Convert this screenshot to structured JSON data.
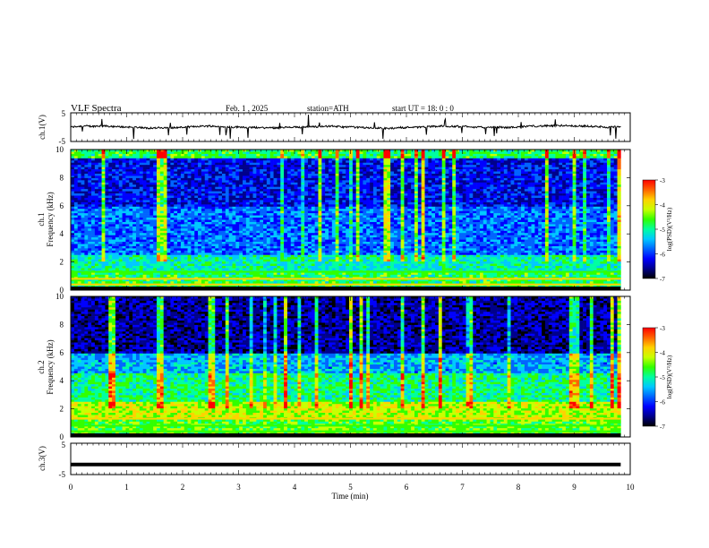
{
  "header": {
    "title": "VLF  Spectra",
    "date": "Feb. 1  , 2025",
    "station": "station=ATH",
    "start_ut": "start  UT  =    18: 0   : 0"
  },
  "colors": {
    "background": "#ffffff",
    "axes": "#000000",
    "trace": "#000000",
    "colormap": [
      "#000000",
      "#00008b",
      "#0000ff",
      "#0064ff",
      "#00c8ff",
      "#00ffa0",
      "#32ff00",
      "#c8ff00",
      "#ffd200",
      "#ff6400",
      "#ff0000",
      "#ffffff"
    ]
  },
  "chart_data": [
    {
      "id": "ch1-waveform",
      "type": "line",
      "ylabel": "ch.1(V)",
      "ylim": [
        -5,
        5
      ],
      "yticks": [
        "5",
        "-5"
      ],
      "xlim": [
        0,
        10
      ],
      "note_series": "approximate baseline near 0 V with small fluctuations and occasional spikes",
      "baseline": 0.0
    },
    {
      "id": "ch1-spectrogram",
      "type": "heatmap",
      "ylabel": "ch.1\nFrequency  (kHz)",
      "ylabel_line1": "ch.1",
      "ylabel_line2": "Frequency  (kHz)",
      "ylim": [
        0,
        10
      ],
      "yticks": [
        "0",
        "2",
        "4",
        "6",
        "8",
        "10"
      ],
      "xlim": [
        0,
        10
      ],
      "colorbar": {
        "label": "log(PSD)(V²/Hz)",
        "range": [
          -7,
          -3
        ],
        "ticks": [
          "-3",
          "-4",
          "-5",
          "-6",
          "-7"
        ]
      }
    },
    {
      "id": "ch2-spectrogram",
      "type": "heatmap",
      "ylabel_line1": "ch.2",
      "ylabel_line2": "Frequency  (kHz)",
      "ylim": [
        0,
        10
      ],
      "yticks": [
        "0",
        "2",
        "4",
        "6",
        "8",
        "10"
      ],
      "xlim": [
        0,
        10
      ],
      "colorbar": {
        "label": "log(PSD)(V²/Hz)",
        "range": [
          -7,
          -3
        ],
        "ticks": [
          "-3",
          "-4",
          "-5",
          "-6",
          "-7"
        ]
      }
    },
    {
      "id": "ch3-waveform",
      "type": "line",
      "ylabel": "ch.3(V)",
      "ylim": [
        -5,
        5
      ],
      "yticks": [
        "5",
        "-5"
      ],
      "xlim": [
        0,
        10
      ],
      "baseline": -1.8
    }
  ],
  "xaxis": {
    "label": "Time  (min)",
    "ticks": [
      "0",
      "1",
      "2",
      "3",
      "4",
      "5",
      "6",
      "7",
      "8",
      "9",
      "10"
    ],
    "range": [
      0,
      10
    ]
  }
}
